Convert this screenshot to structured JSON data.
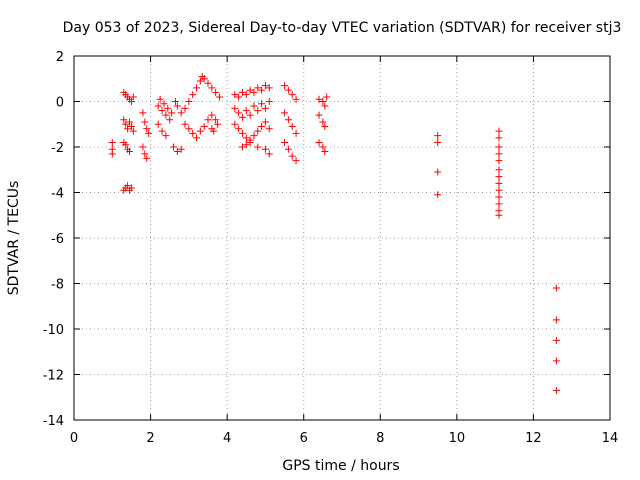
{
  "chart_data": {
    "type": "scatter",
    "title": "Day 053 of 2023, Sidereal Day-to-day VTEC variation (SDTVAR) for receiver stj3",
    "xlabel": "GPS time / hours",
    "ylabel": "SDTVAR / TECUs",
    "xlim": [
      0,
      14
    ],
    "ylim": [
      -14,
      2
    ],
    "xticks": [
      0,
      2,
      4,
      6,
      8,
      10,
      12,
      14
    ],
    "yticks": [
      -14,
      -12,
      -10,
      -8,
      -6,
      -4,
      -2,
      0,
      2
    ],
    "grid": true,
    "marker": "plus",
    "color": "#ff0000",
    "series": [
      {
        "points": [
          [
            1.0,
            -1.8
          ],
          [
            1.0,
            -2.1
          ],
          [
            1.0,
            -2.3
          ],
          [
            1.3,
            0.4
          ],
          [
            1.35,
            0.3
          ],
          [
            1.4,
            0.2
          ],
          [
            1.45,
            0.1
          ],
          [
            1.5,
            0.0
          ],
          [
            1.55,
            0.2
          ],
          [
            1.3,
            -0.8
          ],
          [
            1.35,
            -1.0
          ],
          [
            1.4,
            -1.2
          ],
          [
            1.45,
            -0.9
          ],
          [
            1.5,
            -1.1
          ],
          [
            1.55,
            -1.3
          ],
          [
            1.3,
            -1.8
          ],
          [
            1.35,
            -1.9
          ],
          [
            1.4,
            -2.1
          ],
          [
            1.45,
            -2.2
          ],
          [
            1.3,
            -3.9
          ],
          [
            1.35,
            -3.8
          ],
          [
            1.4,
            -3.7
          ],
          [
            1.45,
            -3.9
          ],
          [
            1.5,
            -3.8
          ],
          [
            1.8,
            -0.5
          ],
          [
            1.85,
            -0.9
          ],
          [
            1.9,
            -1.2
          ],
          [
            1.95,
            -1.4
          ],
          [
            1.8,
            -2.0
          ],
          [
            1.85,
            -2.3
          ],
          [
            1.9,
            -2.5
          ],
          [
            2.2,
            -0.2
          ],
          [
            2.3,
            -0.4
          ],
          [
            2.4,
            -0.6
          ],
          [
            2.5,
            -0.8
          ],
          [
            2.2,
            -1.0
          ],
          [
            2.3,
            -1.3
          ],
          [
            2.4,
            -1.5
          ],
          [
            2.25,
            0.1
          ],
          [
            2.35,
            -0.1
          ],
          [
            2.45,
            -0.3
          ],
          [
            2.55,
            -0.5
          ],
          [
            2.65,
            0.0
          ],
          [
            2.7,
            -0.2
          ],
          [
            2.6,
            -2.0
          ],
          [
            2.7,
            -2.2
          ],
          [
            2.8,
            -2.1
          ],
          [
            2.8,
            -0.5
          ],
          [
            2.9,
            -0.3
          ],
          [
            3.0,
            0.0
          ],
          [
            3.1,
            0.3
          ],
          [
            3.2,
            0.6
          ],
          [
            3.3,
            0.9
          ],
          [
            3.35,
            1.1
          ],
          [
            3.4,
            1.0
          ],
          [
            3.5,
            0.8
          ],
          [
            3.6,
            0.6
          ],
          [
            3.7,
            0.4
          ],
          [
            3.8,
            0.2
          ],
          [
            2.9,
            -1.0
          ],
          [
            3.0,
            -1.2
          ],
          [
            3.1,
            -1.4
          ],
          [
            3.2,
            -1.6
          ],
          [
            3.3,
            -1.3
          ],
          [
            3.4,
            -1.1
          ],
          [
            3.5,
            -0.8
          ],
          [
            3.6,
            -0.6
          ],
          [
            3.7,
            -0.8
          ],
          [
            3.75,
            -1.0
          ],
          [
            3.6,
            -1.2
          ],
          [
            3.65,
            -1.3
          ],
          [
            4.2,
            0.3
          ],
          [
            4.3,
            0.2
          ],
          [
            4.4,
            0.4
          ],
          [
            4.5,
            0.3
          ],
          [
            4.6,
            0.5
          ],
          [
            4.7,
            0.4
          ],
          [
            4.8,
            0.6
          ],
          [
            4.9,
            0.5
          ],
          [
            5.0,
            0.7
          ],
          [
            5.1,
            0.6
          ],
          [
            4.2,
            -0.3
          ],
          [
            4.3,
            -0.5
          ],
          [
            4.4,
            -0.7
          ],
          [
            4.5,
            -0.4
          ],
          [
            4.6,
            -0.6
          ],
          [
            4.7,
            -0.2
          ],
          [
            4.8,
            -0.4
          ],
          [
            4.9,
            -0.1
          ],
          [
            5.0,
            -0.3
          ],
          [
            5.1,
            0.0
          ],
          [
            4.2,
            -1.0
          ],
          [
            4.3,
            -1.2
          ],
          [
            4.4,
            -1.4
          ],
          [
            4.5,
            -1.6
          ],
          [
            4.6,
            -1.8
          ],
          [
            4.7,
            -1.5
          ],
          [
            4.8,
            -1.3
          ],
          [
            4.9,
            -1.1
          ],
          [
            5.0,
            -0.9
          ],
          [
            5.1,
            -1.2
          ],
          [
            4.4,
            -2.0
          ],
          [
            4.5,
            -1.9
          ],
          [
            4.6,
            -1.7
          ],
          [
            4.8,
            -2.0
          ],
          [
            5.0,
            -2.1
          ],
          [
            5.1,
            -2.3
          ],
          [
            5.5,
            0.7
          ],
          [
            5.6,
            0.5
          ],
          [
            5.7,
            0.3
          ],
          [
            5.8,
            0.1
          ],
          [
            5.5,
            -0.5
          ],
          [
            5.6,
            -0.8
          ],
          [
            5.7,
            -1.1
          ],
          [
            5.8,
            -1.4
          ],
          [
            5.5,
            -1.8
          ],
          [
            5.6,
            -2.1
          ],
          [
            5.7,
            -2.4
          ],
          [
            5.8,
            -2.6
          ],
          [
            6.4,
            0.1
          ],
          [
            6.5,
            0.0
          ],
          [
            6.55,
            -0.2
          ],
          [
            6.6,
            0.2
          ],
          [
            6.4,
            -0.6
          ],
          [
            6.5,
            -0.9
          ],
          [
            6.55,
            -1.1
          ],
          [
            6.4,
            -1.8
          ],
          [
            6.5,
            -2.0
          ],
          [
            6.55,
            -2.2
          ],
          [
            9.5,
            -1.5
          ],
          [
            9.5,
            -1.8
          ],
          [
            9.5,
            -3.1
          ],
          [
            9.5,
            -4.1
          ],
          [
            11.1,
            -1.3
          ],
          [
            11.1,
            -1.6
          ],
          [
            11.1,
            -2.0
          ],
          [
            11.1,
            -2.3
          ],
          [
            11.1,
            -2.6
          ],
          [
            11.1,
            -3.0
          ],
          [
            11.1,
            -3.3
          ],
          [
            11.1,
            -3.6
          ],
          [
            11.1,
            -3.9
          ],
          [
            11.1,
            -4.2
          ],
          [
            11.1,
            -4.5
          ],
          [
            11.1,
            -4.8
          ],
          [
            11.1,
            -5.0
          ],
          [
            12.6,
            -8.2
          ],
          [
            12.6,
            -9.6
          ],
          [
            12.6,
            -10.5
          ],
          [
            12.6,
            -11.4
          ],
          [
            12.6,
            -12.7
          ]
        ]
      }
    ]
  }
}
